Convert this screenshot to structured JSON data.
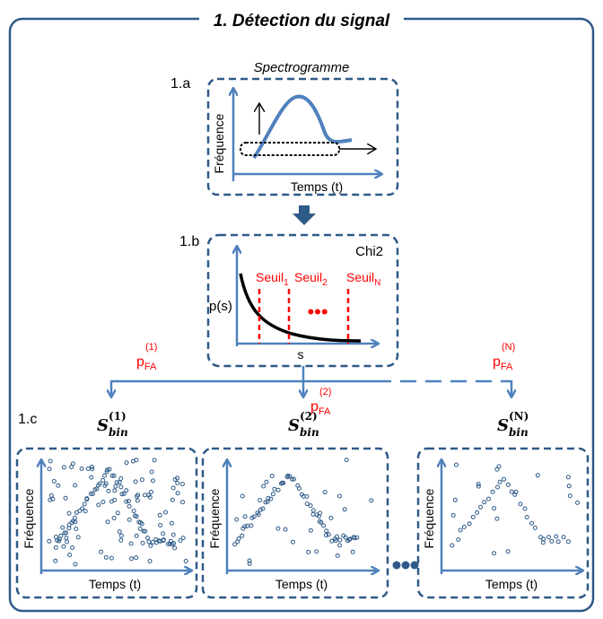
{
  "frame": {
    "title": "1. Détection du signal",
    "colors": {
      "border": "#2e5a87",
      "dash": "#2e5a87",
      "blue": "#4f81bd",
      "red": "#ff0000",
      "black": "#000000"
    }
  },
  "section_a": {
    "label": "1.a",
    "title": "Spectrogramme",
    "ylabel": "Fréquence",
    "xlabel": "Temps (t)"
  },
  "section_b": {
    "label": "1.b",
    "title": "Chi2",
    "ylabel": "p(s)",
    "xlabel": "s",
    "thresholds": [
      {
        "name": "Seuil",
        "sub": "1"
      },
      {
        "name": "Seuil",
        "sub": "2"
      },
      {
        "name": "Seuil",
        "sub": "N"
      }
    ],
    "ellipsis": "•••"
  },
  "branches": {
    "pfa": [
      {
        "base": "p",
        "sub": "FA",
        "sup": "(1)"
      },
      {
        "base": "p",
        "sub": "FA",
        "sup": "(2)"
      },
      {
        "base": "p",
        "sub": "FA",
        "sup": "(N)"
      }
    ]
  },
  "section_c": {
    "label": "1.c",
    "bins": [
      {
        "base": "S",
        "sub": "bin",
        "sup": "(1)"
      },
      {
        "base": "S",
        "sub": "bin",
        "sup": "(2)"
      },
      {
        "base": "S",
        "sub": "bin",
        "sup": "(N)"
      }
    ],
    "ylabel": "Fréquence",
    "xlabel": "Temps (t)",
    "ellipsis_icon": "three-dots-icon"
  }
}
